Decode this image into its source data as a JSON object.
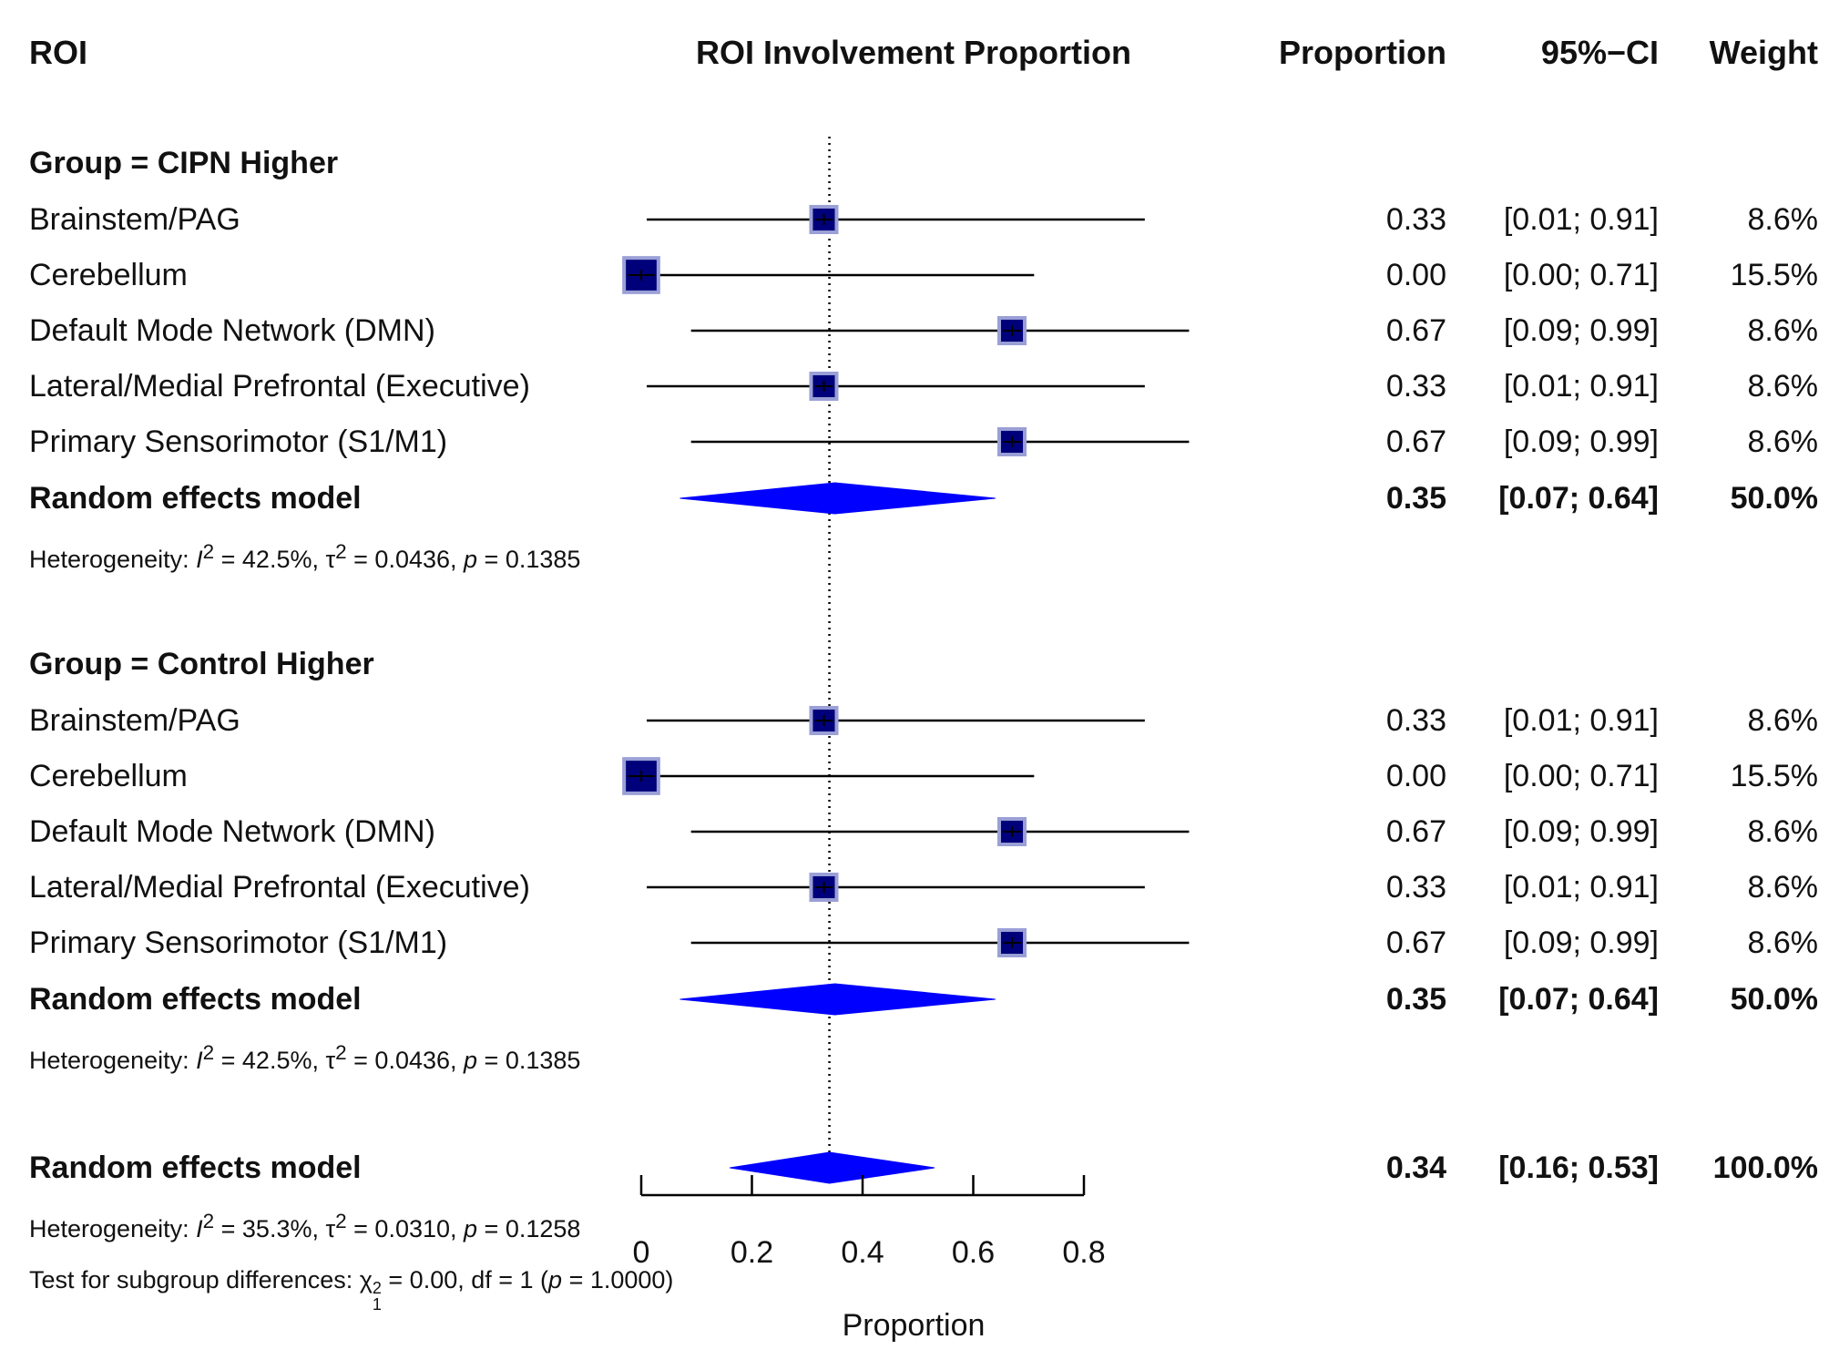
{
  "headers": {
    "roi": "ROI",
    "plot_title": "ROI Involvement Proportion",
    "proportion": "Proportion",
    "ci": "95%−CI",
    "weight": "Weight"
  },
  "colors": {
    "square": "#00007a",
    "square_border": "#9aa0d6",
    "diamond": "#0000ff",
    "line": "#000000"
  },
  "chart_data": {
    "type": "forest",
    "xlabel": "Proportion",
    "xlim": [
      0,
      0.8
    ],
    "x_ticks": [
      {
        "value": 0,
        "label": "0"
      },
      {
        "value": 0.2,
        "label": "0.2"
      },
      {
        "value": 0.4,
        "label": "0.4"
      },
      {
        "value": 0.6,
        "label": "0.6"
      },
      {
        "value": 0.8,
        "label": "0.8"
      }
    ],
    "reference_line": 0.34,
    "groups": [
      {
        "title": "Group = CIPN Higher",
        "studies": [
          {
            "name": "Brainstem/PAG",
            "est": 0.33,
            "lo": 0.01,
            "hi": 0.91,
            "prop": "0.33",
            "ci": "[0.01; 0.91]",
            "weight": "8.6%",
            "w": 8.6
          },
          {
            "name": "Cerebellum",
            "est": 0.0,
            "lo": 0.0,
            "hi": 0.71,
            "prop": "0.00",
            "ci": "[0.00; 0.71]",
            "weight": "15.5%",
            "w": 15.5
          },
          {
            "name": "Default Mode Network (DMN)",
            "est": 0.67,
            "lo": 0.09,
            "hi": 0.99,
            "prop": "0.67",
            "ci": "[0.09; 0.99]",
            "weight": "8.6%",
            "w": 8.6
          },
          {
            "name": "Lateral/Medial Prefrontal (Executive)",
            "est": 0.33,
            "lo": 0.01,
            "hi": 0.91,
            "prop": "0.33",
            "ci": "[0.01; 0.91]",
            "weight": "8.6%",
            "w": 8.6
          },
          {
            "name": "Primary Sensorimotor (S1/M1)",
            "est": 0.67,
            "lo": 0.09,
            "hi": 0.99,
            "prop": "0.67",
            "ci": "[0.09; 0.99]",
            "weight": "8.6%",
            "w": 8.6
          }
        ],
        "model": {
          "name": "Random effects model",
          "est": 0.35,
          "lo": 0.07,
          "hi": 0.64,
          "prop": "0.35",
          "ci": "[0.07; 0.64]",
          "weight": "50.0%"
        },
        "het": {
          "lead": "Heterogeneity: ",
          "i2": "42.5%",
          "tau2": "0.0436",
          "p": "0.1385"
        }
      },
      {
        "title": "Group = Control Higher",
        "studies": [
          {
            "name": "Brainstem/PAG",
            "est": 0.33,
            "lo": 0.01,
            "hi": 0.91,
            "prop": "0.33",
            "ci": "[0.01; 0.91]",
            "weight": "8.6%",
            "w": 8.6
          },
          {
            "name": "Cerebellum",
            "est": 0.0,
            "lo": 0.0,
            "hi": 0.71,
            "prop": "0.00",
            "ci": "[0.00; 0.71]",
            "weight": "15.5%",
            "w": 15.5
          },
          {
            "name": "Default Mode Network (DMN)",
            "est": 0.67,
            "lo": 0.09,
            "hi": 0.99,
            "prop": "0.67",
            "ci": "[0.09; 0.99]",
            "weight": "8.6%",
            "w": 8.6
          },
          {
            "name": "Lateral/Medial Prefrontal (Executive)",
            "est": 0.33,
            "lo": 0.01,
            "hi": 0.91,
            "prop": "0.33",
            "ci": "[0.01; 0.91]",
            "weight": "8.6%",
            "w": 8.6
          },
          {
            "name": "Primary Sensorimotor (S1/M1)",
            "est": 0.67,
            "lo": 0.09,
            "hi": 0.99,
            "prop": "0.67",
            "ci": "[0.09; 0.99]",
            "weight": "8.6%",
            "w": 8.6
          }
        ],
        "model": {
          "name": "Random effects model",
          "est": 0.35,
          "lo": 0.07,
          "hi": 0.64,
          "prop": "0.35",
          "ci": "[0.07; 0.64]",
          "weight": "50.0%"
        },
        "het": {
          "lead": "Heterogeneity: ",
          "i2": "42.5%",
          "tau2": "0.0436",
          "p": "0.1385"
        }
      }
    ],
    "overall": {
      "name": "Random effects model",
      "est": 0.34,
      "lo": 0.16,
      "hi": 0.53,
      "prop": "0.34",
      "ci": "[0.16; 0.53]",
      "weight": "100.0%",
      "het": {
        "lead": "Heterogeneity: ",
        "i2": "35.3%",
        "tau2": "0.0310",
        "p": "0.1258"
      },
      "subgroup_test": {
        "lead": "Test for subgroup differences: ",
        "chi2": "0.00",
        "df": "1",
        "p": "1.0000"
      }
    }
  }
}
